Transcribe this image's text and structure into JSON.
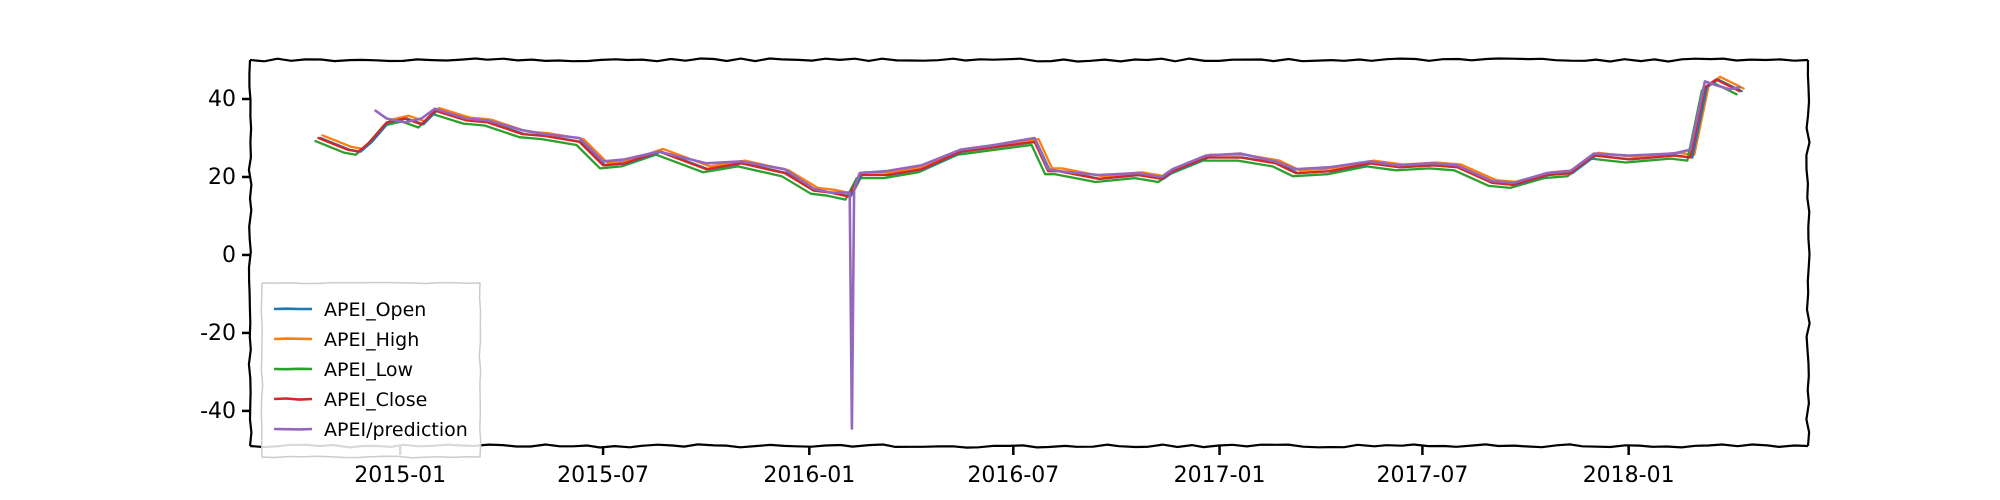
{
  "chart_data": {
    "type": "line",
    "style": "xkcd",
    "title": "",
    "xlabel": "",
    "ylabel": "",
    "xlim": [
      "2014-08-20",
      "2018-06-10"
    ],
    "ylim": [
      -49,
      50
    ],
    "yticks": [
      40,
      20,
      0,
      -20,
      -40
    ],
    "ytick_labels": [
      "40",
      "20",
      "0",
      "-20",
      "-40"
    ],
    "xticks": [
      "2015-01-01",
      "2015-07-01",
      "2016-01-01",
      "2016-07-01",
      "2017-01-01",
      "2017-07-01",
      "2018-01-01"
    ],
    "xtick_labels": [
      "2015-01",
      "2015-07",
      "2016-01",
      "2016-07",
      "2017-01",
      "2017-07",
      "2018-01"
    ],
    "grid": false,
    "legend_position": "lower left",
    "series": [
      {
        "name": "APEI_Open",
        "color": "#1f77b4",
        "offset": 0.0
      },
      {
        "name": "APEI_High",
        "color": "#ff7f0e",
        "offset": 0.7
      },
      {
        "name": "APEI_Low",
        "color": "#2ca02c",
        "offset": -0.8
      },
      {
        "name": "APEI_Close",
        "color": "#d62728",
        "offset": 0.0,
        "x": [
          "2014-10-20",
          "2014-11-15",
          "2014-11-25",
          "2014-12-05",
          "2014-12-20",
          "2015-01-05",
          "2015-01-20",
          "2015-02-01",
          "2015-03-01",
          "2015-03-20",
          "2015-04-20",
          "2015-05-10",
          "2015-06-10",
          "2015-07-01",
          "2015-07-20",
          "2015-08-20",
          "2015-10-01",
          "2015-11-01",
          "2015-12-10",
          "2016-01-05",
          "2016-01-20",
          "2016-02-05",
          "2016-02-15",
          "2016-03-10",
          "2016-04-10",
          "2016-05-15",
          "2016-06-10",
          "2016-07-20",
          "2016-08-01",
          "2016-08-10",
          "2016-09-15",
          "2016-10-20",
          "2016-11-10",
          "2016-11-20",
          "2016-12-20",
          "2017-01-20",
          "2017-02-20",
          "2017-03-10",
          "2017-04-10",
          "2017-05-15",
          "2017-06-10",
          "2017-07-10",
          "2017-08-01",
          "2017-09-01",
          "2017-09-20",
          "2017-10-20",
          "2017-11-10",
          "2017-12-01",
          "2018-01-01",
          "2018-02-10",
          "2018-02-25",
          "2018-03-10",
          "2018-03-20",
          "2018-04-10"
        ],
        "values": [
          30,
          27,
          26.5,
          29,
          34,
          35,
          33.5,
          37,
          34.5,
          34,
          31,
          30.5,
          29,
          23,
          23.5,
          26.5,
          22,
          23.5,
          21,
          16.5,
          16,
          15,
          20.5,
          20.5,
          22,
          26.5,
          27.5,
          29,
          21.5,
          21.5,
          19.5,
          20.5,
          19.5,
          21.5,
          25,
          25,
          23.5,
          21,
          21.5,
          23.5,
          22.5,
          23,
          22.5,
          18.5,
          18,
          20.5,
          21,
          25.5,
          24.5,
          25.5,
          25,
          43,
          45,
          42
        ]
      },
      {
        "name": "APEI/prediction",
        "color": "#9467bd",
        "offset": 0.0,
        "x": [
          "2014-12-10",
          "2014-12-20",
          "2015-01-05",
          "2015-01-20",
          "2015-02-01",
          "2015-03-01",
          "2015-03-20",
          "2015-04-20",
          "2015-05-10",
          "2015-06-10",
          "2015-07-01",
          "2015-07-20",
          "2015-08-20",
          "2015-10-01",
          "2015-11-01",
          "2015-12-10",
          "2016-01-05",
          "2016-01-20",
          "2016-02-06",
          "2016-02-08",
          "2016-02-10",
          "2016-02-15",
          "2016-03-10",
          "2016-04-10",
          "2016-05-15",
          "2016-06-10",
          "2016-07-20",
          "2016-08-01",
          "2016-08-10",
          "2016-09-15",
          "2016-10-20",
          "2016-11-10",
          "2016-11-20",
          "2016-12-20",
          "2017-01-20",
          "2017-02-20",
          "2017-03-10",
          "2017-04-10",
          "2017-05-15",
          "2017-06-10",
          "2017-07-10",
          "2017-08-01",
          "2017-09-01",
          "2017-09-20",
          "2017-10-20",
          "2017-11-10",
          "2017-12-01",
          "2018-01-01",
          "2018-02-10",
          "2018-02-25",
          "2018-03-10",
          "2018-03-20",
          "2018-04-01",
          "2018-04-10"
        ],
        "values": [
          37,
          35,
          34,
          35,
          37.5,
          35,
          34.5,
          32,
          31,
          30,
          24,
          24.5,
          26.5,
          23.5,
          24,
          22,
          17,
          16,
          16,
          -44.5,
          17,
          21,
          21.5,
          23,
          27,
          28,
          30,
          22,
          21.5,
          20.5,
          21,
          20,
          22,
          25.5,
          26,
          24,
          22,
          22.5,
          24,
          23,
          23.5,
          23,
          19,
          18.5,
          21,
          21.5,
          26,
          25.5,
          26,
          27,
          44.5,
          43.5,
          42.5,
          43
        ]
      }
    ]
  }
}
